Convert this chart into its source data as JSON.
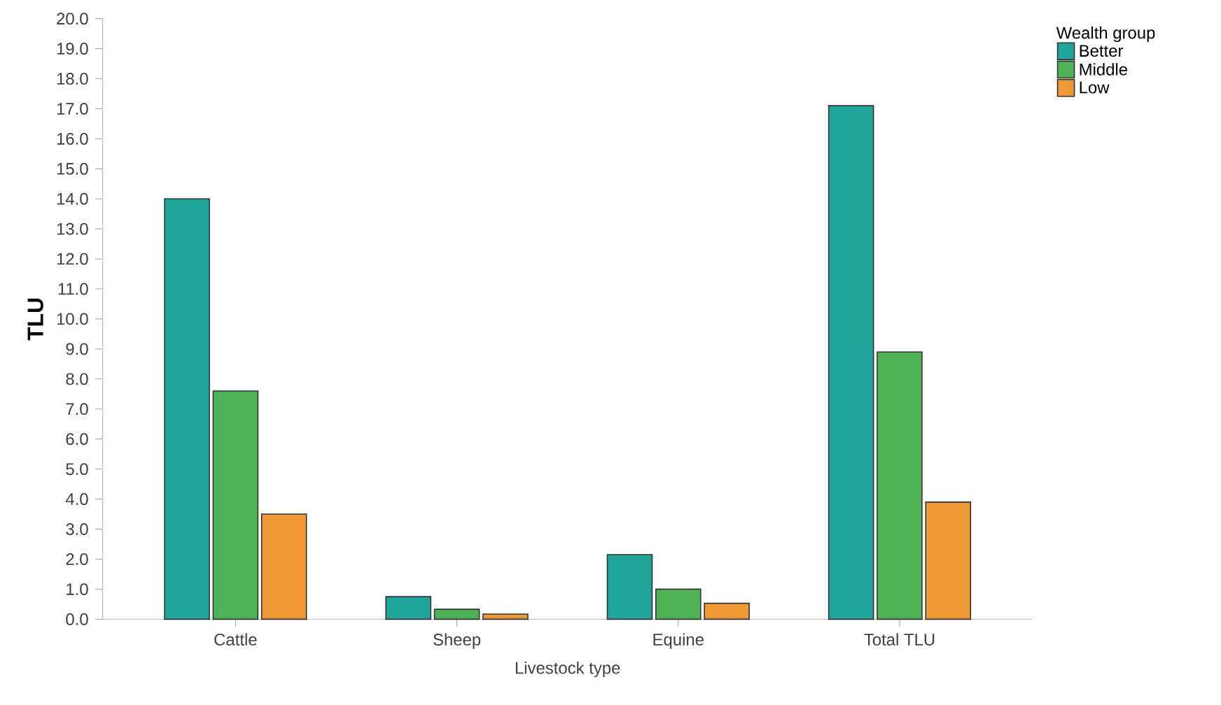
{
  "chart_data": {
    "type": "bar",
    "xlabel": "Livestock type",
    "ylabel": "TLU",
    "legend_title": "Wealth group",
    "legend": "top right",
    "grid": false,
    "categories": [
      "Cattle",
      "Sheep",
      "Equine",
      "Total TLU"
    ],
    "series": [
      {
        "name": "Better",
        "color": "#21a59a",
        "values": [
          14.0,
          0.75,
          2.15,
          17.1
        ]
      },
      {
        "name": "Middle",
        "color": "#4fb257",
        "values": [
          7.6,
          0.33,
          1.0,
          8.9
        ]
      },
      {
        "name": "Low",
        "color": "#ee9836",
        "values": [
          3.5,
          0.17,
          0.53,
          3.9
        ]
      }
    ],
    "ylim": [
      0,
      20
    ],
    "yticks": [
      {
        "value": 0,
        "label": "0.0"
      },
      {
        "value": 1,
        "label": "1.0"
      },
      {
        "value": 2,
        "label": "2.0"
      },
      {
        "value": 3,
        "label": "3.0"
      },
      {
        "value": 4,
        "label": "4.0"
      },
      {
        "value": 5,
        "label": "5.0"
      },
      {
        "value": 6,
        "label": "6.0"
      },
      {
        "value": 7,
        "label": "7.0"
      },
      {
        "value": 8,
        "label": "8.0"
      },
      {
        "value": 9,
        "label": "9.0"
      },
      {
        "value": 10,
        "label": "10.0"
      },
      {
        "value": 11,
        "label": "11.0"
      },
      {
        "value": 12,
        "label": "12.0"
      },
      {
        "value": 13,
        "label": "13.0"
      },
      {
        "value": 14,
        "label": "14.0"
      },
      {
        "value": 15,
        "label": "15.0"
      },
      {
        "value": 16,
        "label": "16.0"
      },
      {
        "value": 17,
        "label": "17.0"
      },
      {
        "value": 18,
        "label": "18.0"
      },
      {
        "value": 19,
        "label": "19.0"
      },
      {
        "value": 20,
        "label": "20.0"
      }
    ]
  }
}
